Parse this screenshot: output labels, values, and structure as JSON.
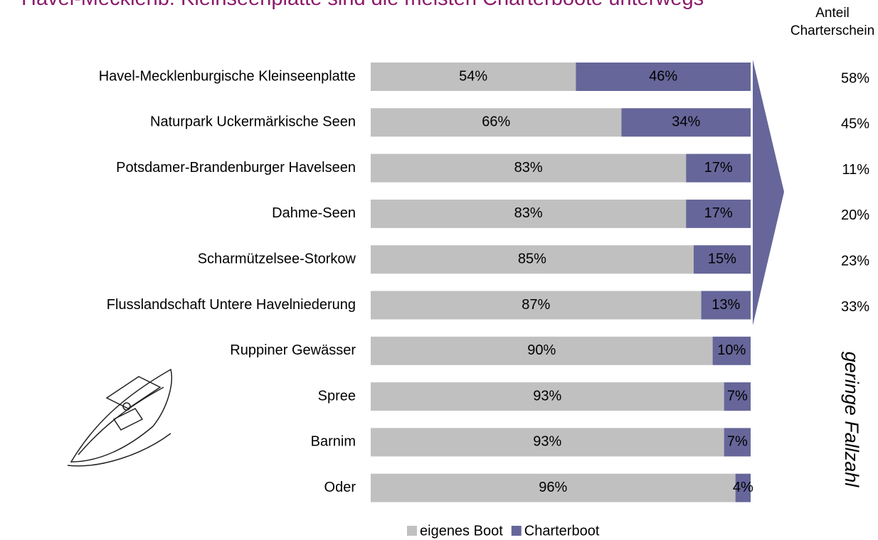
{
  "chart_data": {
    "type": "stacked-bar-horizontal",
    "title": "Havel-Mecklenb. Kleinseenplatte sind die meisten Charterboote unterwegs",
    "categories": [
      "Havel-Mecklenburgische Kleinseenplatte",
      "Naturpark Uckermärkische Seen",
      "Potsdamer-Brandenburger Havelseen",
      "Dahme-Seen",
      "Scharmützelsee-Storkow",
      "Flusslandschaft Untere Havelniederung",
      "Ruppiner Gewässer",
      "Spree",
      "Barnim",
      "Oder"
    ],
    "series": [
      {
        "name": "eigenes Boot",
        "color": "#c0c0c0",
        "values": [
          54,
          66,
          83,
          83,
          85,
          87,
          90,
          93,
          93,
          96
        ],
        "value_labels": [
          "54%",
          "66%",
          "83%",
          "83%",
          "85%",
          "87%",
          "90%",
          "93%",
          "93%",
          "96%"
        ]
      },
      {
        "name": "Charterboot",
        "color": "#66669a",
        "values": [
          46,
          34,
          17,
          17,
          15,
          13,
          10,
          7,
          7,
          4
        ],
        "value_labels": [
          "46%",
          "34%",
          "17%",
          "17%",
          "15%",
          "13%",
          "10%",
          "7%",
          "7%",
          "4%"
        ]
      }
    ],
    "xlim": [
      0,
      100
    ],
    "side_column": {
      "title": "Anteil Charterschein",
      "values": [
        58,
        45,
        11,
        20,
        23,
        33
      ],
      "value_labels": [
        "58%",
        "45%",
        "11%",
        "20%",
        "23%",
        "33%"
      ]
    },
    "annotation": "geringe Fallzahl"
  }
}
